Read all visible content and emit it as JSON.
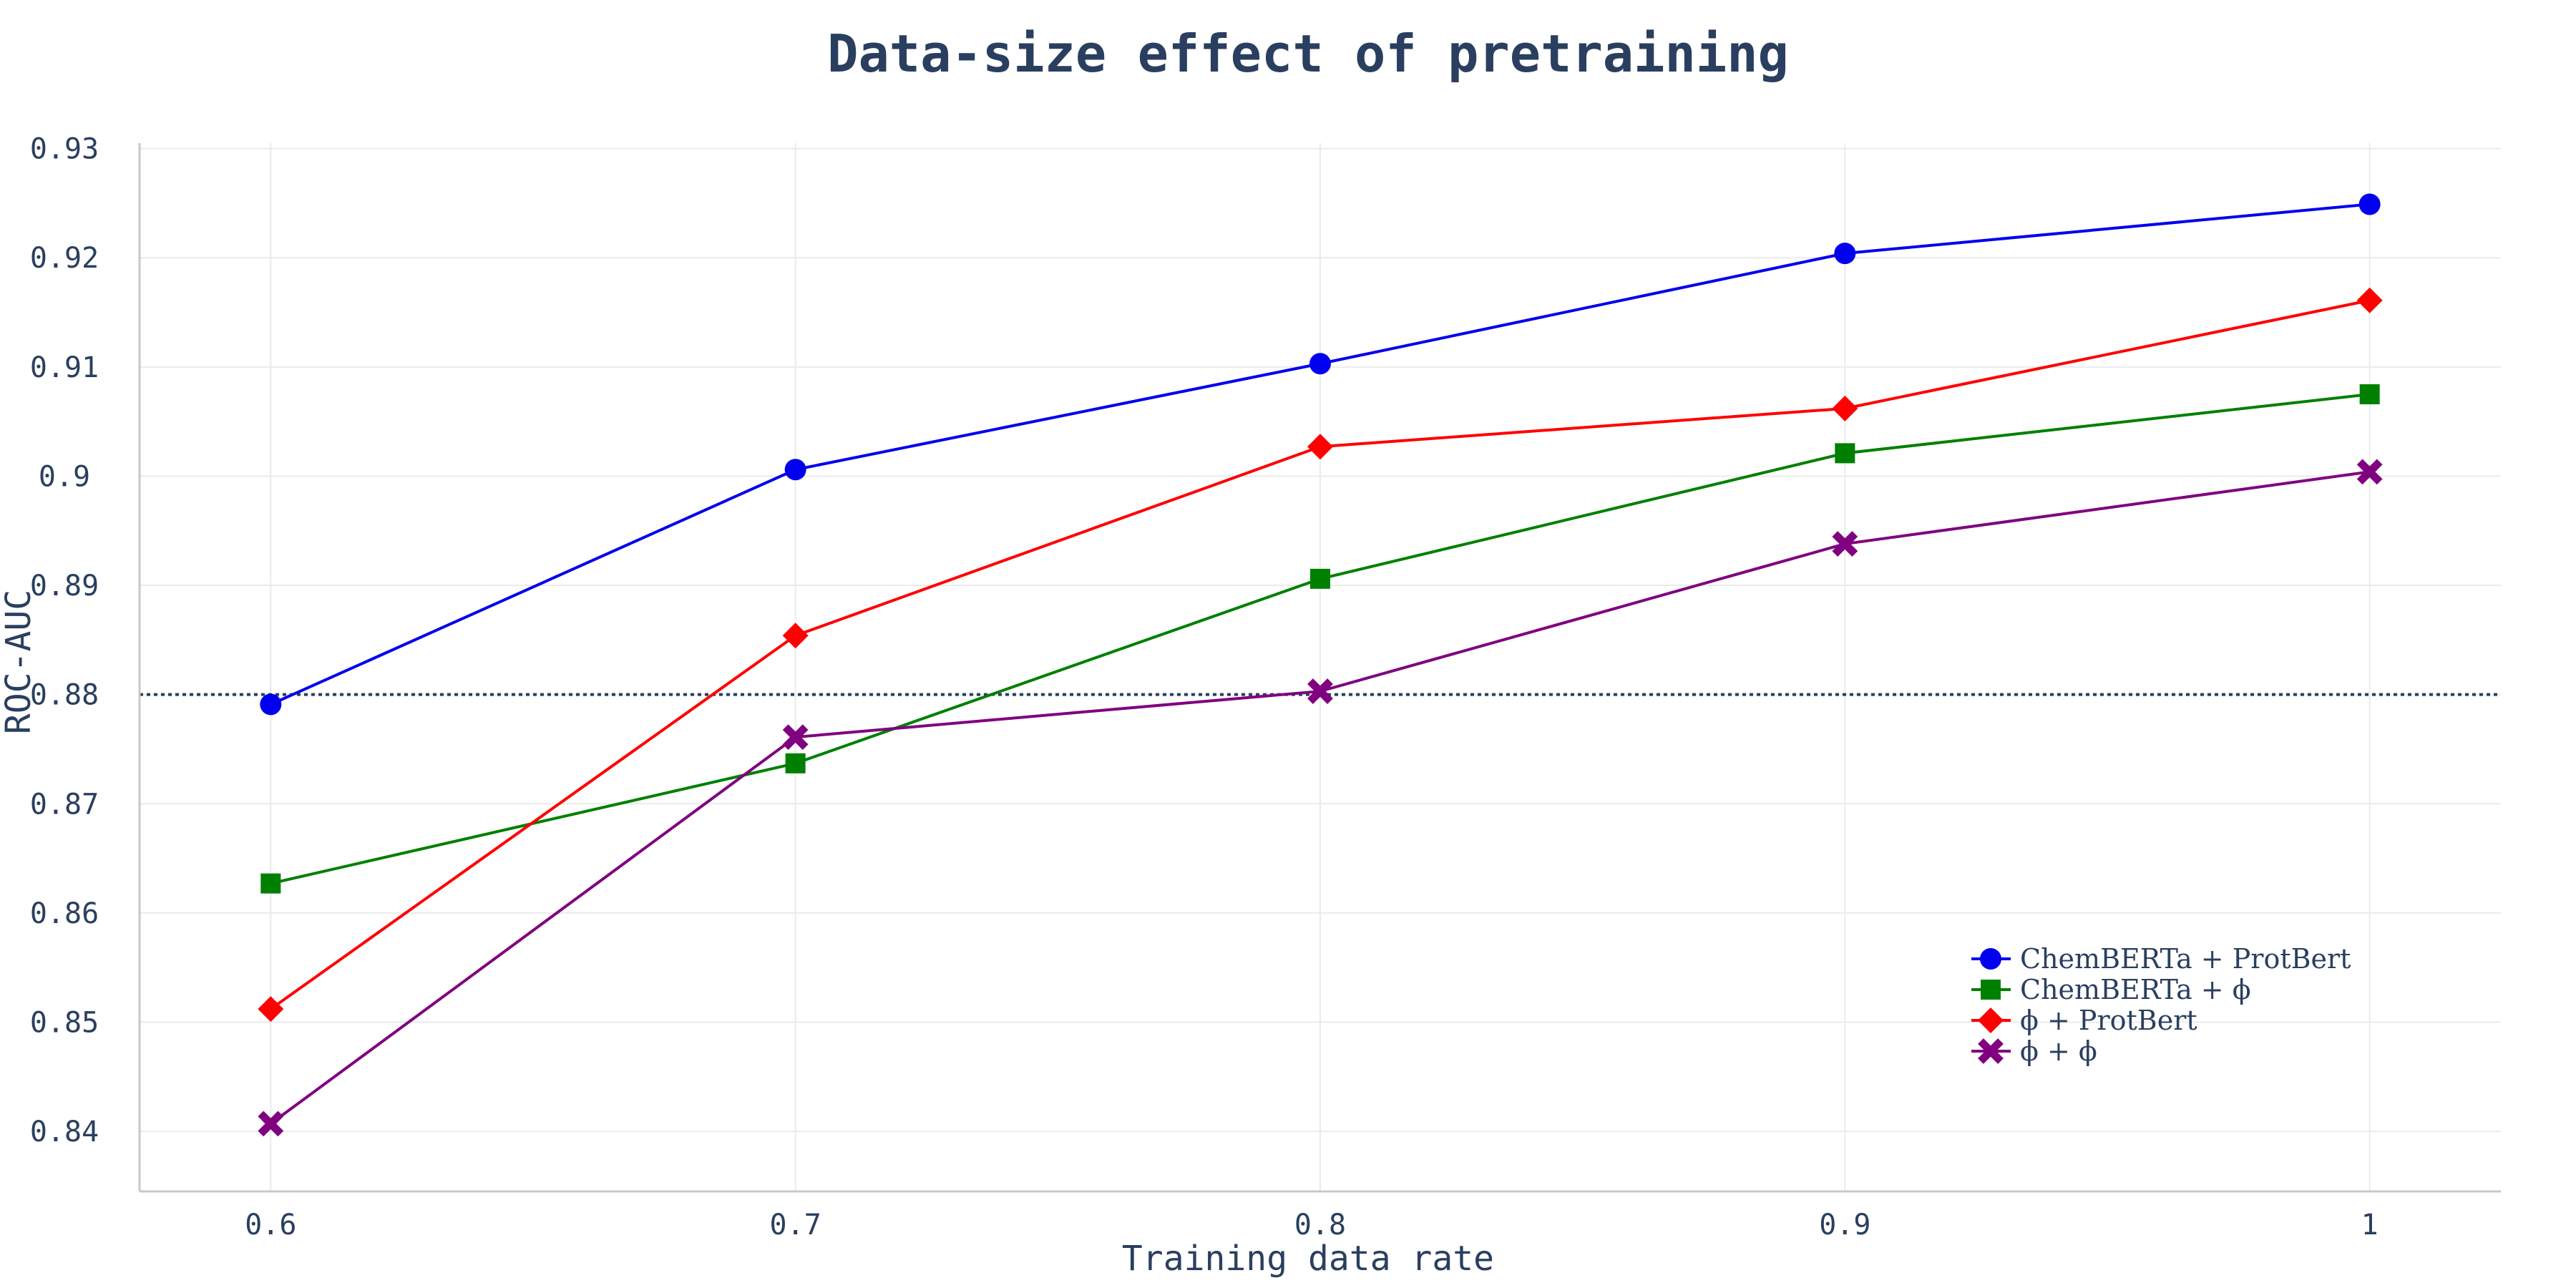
{
  "chart_data": {
    "type": "line",
    "title": "Data-size effect of pretraining",
    "xlabel": "Training data rate",
    "ylabel": "ROC-AUC",
    "x": [
      0.6,
      0.7,
      0.8,
      0.9,
      1
    ],
    "x_tick_labels": [
      "0.6",
      "0.7",
      "0.8",
      "0.9",
      "1"
    ],
    "y_tick_values": [
      0.84,
      0.85,
      0.86,
      0.87,
      0.88,
      0.89,
      0.9,
      0.91,
      0.92,
      0.93
    ],
    "y_tick_labels": [
      "0.84",
      "0.85",
      "0.86",
      "0.87",
      "0.88",
      "0.89",
      "0.9",
      "0.91",
      "0.92",
      "0.93"
    ],
    "xlim": [
      0.575,
      1.025
    ],
    "ylim": [
      0.8345,
      0.9305
    ],
    "grid": true,
    "legend_position": "bottom-right",
    "reference_line": {
      "y": 0.88,
      "style": "dotted",
      "color": "#2a3f5f"
    },
    "series": [
      {
        "name": "ChemBERTa + ProtBert",
        "color": "#0000ee",
        "marker": "circle",
        "values": [
          0.8791,
          0.9006,
          0.9103,
          0.9204,
          0.9249
        ]
      },
      {
        "name": "ChemBERTa + ϕ",
        "color": "#008000",
        "marker": "square",
        "values": [
          0.8627,
          0.8737,
          0.8906,
          0.9021,
          0.9075
        ]
      },
      {
        "name": "ϕ + ProtBert",
        "color": "#ff0000",
        "marker": "diamond",
        "values": [
          0.8512,
          0.8854,
          0.9027,
          0.9062,
          0.9161
        ]
      },
      {
        "name": "ϕ + ϕ",
        "color": "#800080",
        "marker": "x",
        "values": [
          0.8407,
          0.8761,
          0.8803,
          0.8938,
          0.9004
        ]
      }
    ]
  }
}
